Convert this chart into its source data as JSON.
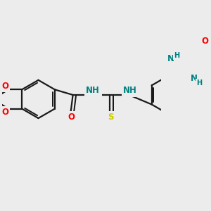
{
  "background_color": "#ececec",
  "bond_color": "#1a1a1a",
  "bond_width": 1.6,
  "atom_colors": {
    "O": "#ff0000",
    "N": "#0000cc",
    "S": "#cccc00",
    "NH": "#008080",
    "C": "#1a1a1a"
  },
  "font_size": 8.5,
  "font_size_h": 7.0
}
